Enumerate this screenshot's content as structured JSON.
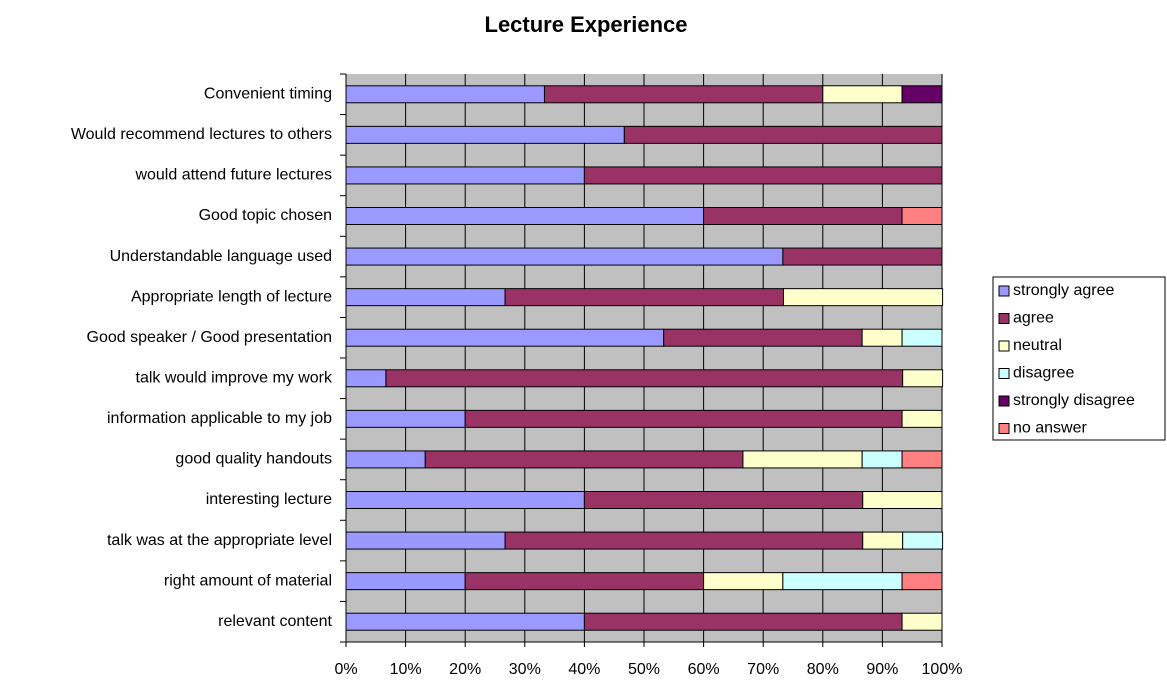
{
  "chart_data": {
    "type": "stacked-bar-horizontal",
    "title": "Lecture Experience",
    "categories": [
      "Convenient timing",
      "Would recommend lectures to others",
      "would attend future lectures",
      "Good topic chosen",
      "Understandable language used",
      "Appropriate length of lecture",
      "Good speaker / Good presentation",
      "talk would improve my work",
      "information applicable to my job",
      "good quality handouts",
      "interesting lecture",
      "talk was at the appropriate level",
      "right amount of material",
      "relevant content"
    ],
    "series": [
      {
        "name": "strongly agree",
        "color": "#9999ff",
        "values": [
          33.3,
          46.7,
          40,
          60,
          73.3,
          26.7,
          53.3,
          6.7,
          20,
          13.3,
          40,
          26.7,
          20,
          40
        ]
      },
      {
        "name": "agree",
        "color": "#993366",
        "values": [
          46.7,
          53.3,
          60,
          33.3,
          26.7,
          46.7,
          33.3,
          86.7,
          73.3,
          53.3,
          46.7,
          60,
          40,
          53.3
        ]
      },
      {
        "name": "neutral",
        "color": "#ffffcc",
        "values": [
          13.3,
          0,
          0,
          0,
          0,
          26.7,
          6.7,
          6.7,
          6.7,
          20,
          13.3,
          6.7,
          13.3,
          6.7
        ]
      },
      {
        "name": "disagree",
        "color": "#ccffff",
        "values": [
          0,
          0,
          0,
          0,
          0,
          0,
          6.7,
          0,
          0,
          6.7,
          0,
          6.7,
          20,
          0
        ]
      },
      {
        "name": "strongly disagree",
        "color": "#660066",
        "values": [
          6.7,
          0,
          0,
          0,
          0,
          0,
          0,
          0,
          0,
          0,
          0,
          0,
          0,
          0
        ]
      },
      {
        "name": "no answer",
        "color": "#ff8080",
        "values": [
          0,
          0,
          0,
          6.7,
          0,
          0,
          0,
          0,
          0,
          6.7,
          0,
          0,
          6.7,
          0
        ]
      }
    ],
    "xlim": [
      0,
      100
    ],
    "xticks": [
      {
        "value": 0,
        "label": "0%"
      },
      {
        "value": 10,
        "label": "10%"
      },
      {
        "value": 20,
        "label": "20%"
      },
      {
        "value": 30,
        "label": "30%"
      },
      {
        "value": 40,
        "label": "40%"
      },
      {
        "value": 50,
        "label": "50%"
      },
      {
        "value": 60,
        "label": "60%"
      },
      {
        "value": 70,
        "label": "70%"
      },
      {
        "value": 80,
        "label": "80%"
      },
      {
        "value": 90,
        "label": "90%"
      },
      {
        "value": 100,
        "label": "100%"
      }
    ],
    "grid": true,
    "legend": "right"
  }
}
